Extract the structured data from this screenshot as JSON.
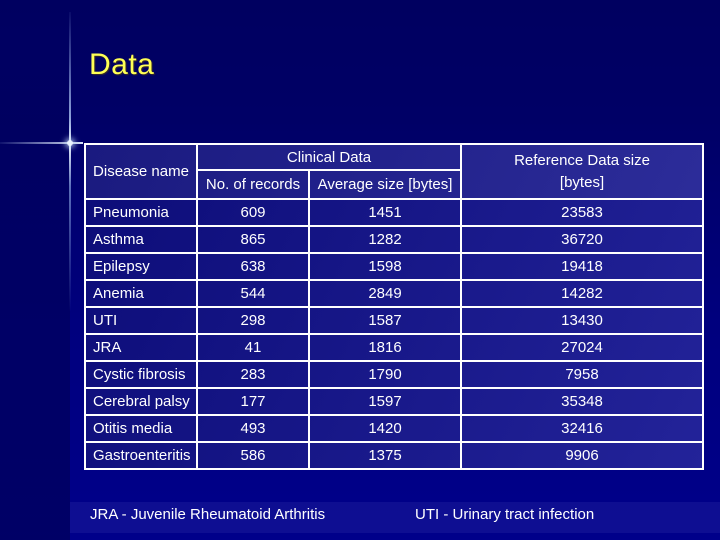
{
  "slide": {
    "title": "Data"
  },
  "table": {
    "headers": {
      "disease": "Disease name",
      "clinical_group": "Clinical Data",
      "records": "No. of records",
      "avg_size": "Average size [bytes]",
      "reference": "Reference Data size [bytes]"
    },
    "rows": [
      {
        "disease": "Pneumonia",
        "records": "609",
        "avg": "1451",
        "ref": "23583"
      },
      {
        "disease": "Asthma",
        "records": "865",
        "avg": "1282",
        "ref": "36720"
      },
      {
        "disease": "Epilepsy",
        "records": "638",
        "avg": "1598",
        "ref": "19418"
      },
      {
        "disease": "Anemia",
        "records": "544",
        "avg": "2849",
        "ref": "14282"
      },
      {
        "disease": "UTI",
        "records": "298",
        "avg": "1587",
        "ref": "13430"
      },
      {
        "disease": "JRA",
        "records": "41",
        "avg": "1816",
        "ref": "27024"
      },
      {
        "disease": "Cystic fibrosis",
        "records": "283",
        "avg": "1790",
        "ref": "7958"
      },
      {
        "disease": "Cerebral palsy",
        "records": "177",
        "avg": "1597",
        "ref": "35348"
      },
      {
        "disease": "Otitis media",
        "records": "493",
        "avg": "1420",
        "ref": "32416"
      },
      {
        "disease": "Gastroenteritis",
        "records": "586",
        "avg": "1375",
        "ref": "9906"
      }
    ]
  },
  "footer": {
    "jra_abbrev": "JRA - Juvenile Rheumatoid Arthritis",
    "uti_abbrev": "UTI - Urinary tract infection"
  },
  "colors": {
    "background_top": "#000060",
    "background_bottom": "#00008a",
    "table_fill_dark": "#0c0c78",
    "table_fill_light": "#232399",
    "border": "#ffffff",
    "title_text": "#ffff55",
    "body_text": "#ffffff",
    "accent_line": "#e8f1ff"
  }
}
